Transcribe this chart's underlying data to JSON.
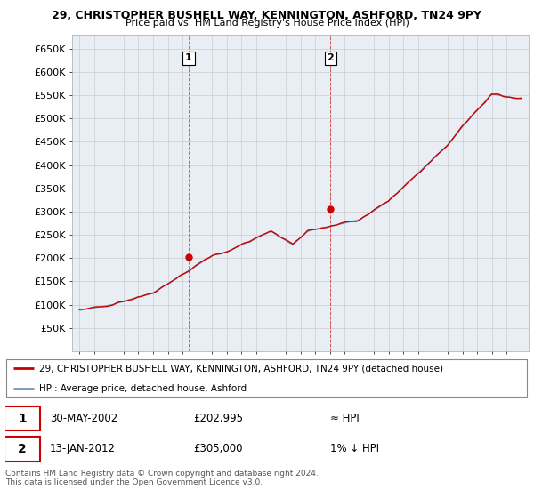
{
  "title1": "29, CHRISTOPHER BUSHELL WAY, KENNINGTON, ASHFORD, TN24 9PY",
  "title2": "Price paid vs. HM Land Registry's House Price Index (HPI)",
  "ylim": [
    0,
    680000
  ],
  "xlim_start": 1994.5,
  "xlim_end": 2025.5,
  "purchase1_x": 2002.41,
  "purchase1_y": 202995,
  "purchase2_x": 2012.04,
  "purchase2_y": 305000,
  "legend_line1": "29, CHRISTOPHER BUSHELL WAY, KENNINGTON, ASHFORD, TN24 9PY (detached house)",
  "legend_line2": "HPI: Average price, detached house, Ashford",
  "annotation1_date": "30-MAY-2002",
  "annotation1_price": "£202,995",
  "annotation1_hpi": "≈ HPI",
  "annotation2_date": "13-JAN-2012",
  "annotation2_price": "£305,000",
  "annotation2_hpi": "1% ↓ HPI",
  "footer": "Contains HM Land Registry data © Crown copyright and database right 2024.\nThis data is licensed under the Open Government Licence v3.0.",
  "line_color": "#cc0000",
  "hpi_color": "#7799bb",
  "background_color": "#ffffff",
  "grid_color": "#cccccc",
  "plot_bg": "#e8eef4"
}
